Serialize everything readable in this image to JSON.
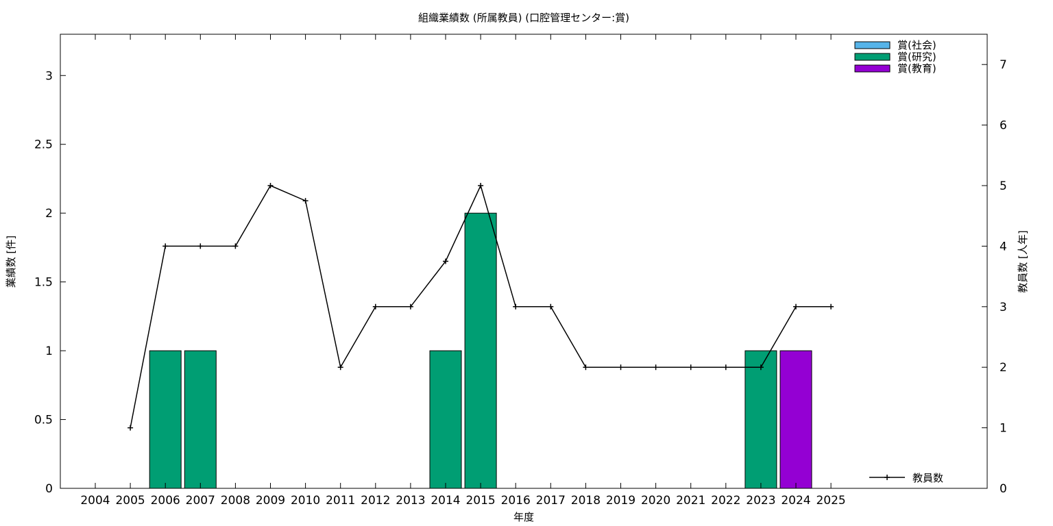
{
  "chart_data": {
    "type": "bar",
    "title": "組織業績数 (所属教員) (口腔管理センター:賞)",
    "xlabel": "年度",
    "ylabel": "業績数 [件]",
    "y2label": "教員数 [人年]",
    "categories": [
      "2004",
      "2005",
      "2006",
      "2007",
      "2008",
      "2009",
      "2010",
      "2011",
      "2012",
      "2013",
      "2014",
      "2015",
      "2016",
      "2017",
      "2018",
      "2019",
      "2020",
      "2021",
      "2022",
      "2023",
      "2024",
      "2025"
    ],
    "y_ticks": [
      "0",
      "0.5",
      "1",
      "1.5",
      "2",
      "2.5",
      "3"
    ],
    "y2_ticks": [
      "0",
      "1",
      "2",
      "3",
      "4",
      "5",
      "6",
      "7"
    ],
    "ylim": [
      0,
      3.3
    ],
    "y2lim": [
      0,
      7.5
    ],
    "grid": false,
    "legend_position": "top-right",
    "series": [
      {
        "name": "賞(社会)",
        "color": "#56b4e9",
        "values": [
          0,
          0,
          0,
          0,
          0,
          0,
          0,
          0,
          0,
          0,
          0,
          0,
          0,
          0,
          0,
          0,
          0,
          0,
          0,
          0,
          0,
          0
        ]
      },
      {
        "name": "賞(研究)",
        "color": "#009e73",
        "values": [
          0,
          0,
          1,
          1,
          0,
          0,
          0,
          0,
          0,
          0,
          1,
          2,
          0,
          0,
          0,
          0,
          0,
          0,
          0,
          1,
          0,
          0
        ]
      },
      {
        "name": "賞(教育)",
        "color": "#9400d3",
        "values": [
          0,
          0,
          0,
          0,
          0,
          0,
          0,
          0,
          0,
          0,
          0,
          0,
          0,
          0,
          0,
          0,
          0,
          0,
          0,
          0,
          1,
          0
        ]
      }
    ],
    "line_series": {
      "name": "教員数",
      "color": "#000000",
      "axis": "y2",
      "values": [
        null,
        1,
        4,
        4,
        4,
        5,
        4.75,
        2,
        3,
        3,
        3.75,
        5,
        3,
        3,
        2,
        2,
        2,
        2,
        2,
        2,
        3,
        3
      ]
    }
  }
}
